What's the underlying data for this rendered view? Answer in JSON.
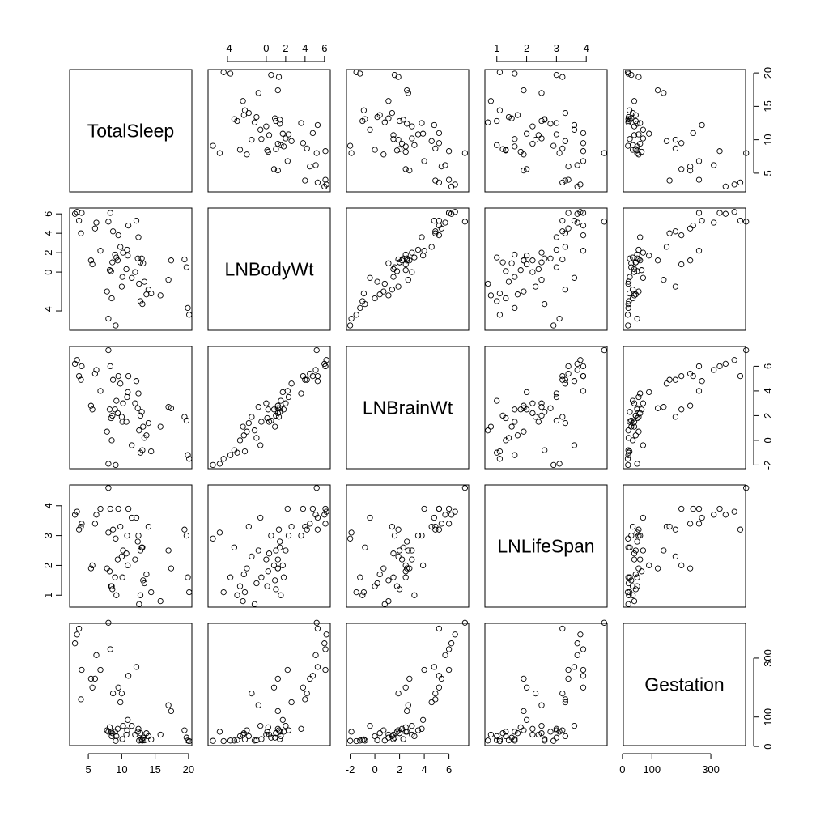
{
  "chart_data": {
    "type": "scatter",
    "variables": [
      "TotalSleep",
      "LNBodyWt",
      "LNBrainWt",
      "LNLifeSpan",
      "Gestation"
    ],
    "ranges": [
      [
        2.2,
        20.5
      ],
      [
        -6.0,
        6.6
      ],
      [
        -2.3,
        7.6
      ],
      [
        0.6,
        4.7
      ],
      [
        3,
        418
      ]
    ],
    "ticks": [
      [
        5,
        10,
        15,
        20
      ],
      [
        -4,
        0,
        2,
        4,
        6
      ],
      [
        -2,
        0,
        2,
        4,
        6
      ],
      [
        1,
        2,
        3,
        4
      ],
      [
        0,
        100,
        300
      ]
    ],
    "tick_labels": [
      [
        "5",
        "10",
        "15",
        "20"
      ],
      [
        "-4",
        "0",
        "2",
        "4",
        "6"
      ],
      [
        "-2",
        "0",
        "2",
        "4",
        "6"
      ],
      [
        "1",
        "2",
        "3",
        "4"
      ],
      [
        "0",
        "100",
        "300"
      ]
    ],
    "grid": false,
    "points": [
      {
        "TotalSleep": 3.3,
        "LNBodyWt": 6.2,
        "LNBrainWt": 6.5,
        "LNLifeSpan": 3.8,
        "Gestation": 380
      },
      {
        "TotalSleep": 3.0,
        "LNBodyWt": 6.0,
        "LNBrainWt": 6.2,
        "LNLifeSpan": 3.7,
        "Gestation": 350
      },
      {
        "TotalSleep": 4.0,
        "LNBodyWt": 6.1,
        "LNBrainWt": 6.0,
        "LNLifeSpan": 3.4,
        "Gestation": 260
      },
      {
        "TotalSleep": 3.6,
        "LNBodyWt": 5.3,
        "LNBrainWt": 5.2,
        "LNLifeSpan": 3.2,
        "Gestation": 400
      },
      {
        "TotalSleep": 3.9,
        "LNBodyWt": 4.0,
        "LNBrainWt": 4.9,
        "LNLifeSpan": 3.3,
        "Gestation": 160
      },
      {
        "TotalSleep": 6.2,
        "LNBodyWt": 5.1,
        "LNBrainWt": 5.7,
        "LNLifeSpan": 3.7,
        "Gestation": 310
      },
      {
        "TotalSleep": 6.0,
        "LNBodyWt": 4.5,
        "LNBrainWt": 5.4,
        "LNLifeSpan": 3.4,
        "Gestation": 230
      },
      {
        "TotalSleep": 8.0,
        "LNBodyWt": 5.2,
        "LNBrainWt": 7.3,
        "LNLifeSpan": 4.6,
        "Gestation": 420
      },
      {
        "TotalSleep": 8.3,
        "LNBodyWt": 6.1,
        "LNBrainWt": 6.0,
        "LNLifeSpan": 3.9,
        "Gestation": 330
      },
      {
        "TotalSleep": 8.7,
        "LNBodyWt": 4.2,
        "LNBrainWt": 4.9,
        "LNLifeSpan": 3.2,
        "Gestation": 180
      },
      {
        "TotalSleep": 9.5,
        "LNBodyWt": 3.8,
        "LNBrainWt": 5.2,
        "LNLifeSpan": 3.9,
        "Gestation": 200
      },
      {
        "TotalSleep": 11.0,
        "LNBodyWt": 4.8,
        "LNBrainWt": 5.2,
        "LNLifeSpan": 3.9,
        "Gestation": 240
      },
      {
        "TotalSleep": 12.2,
        "LNBodyWt": 5.3,
        "LNBrainWt": 4.8,
        "LNLifeSpan": 3.6,
        "Gestation": 270
      },
      {
        "TotalSleep": 9.8,
        "LNBodyWt": 2.6,
        "LNBrainWt": 4.6,
        "LNLifeSpan": 3.3,
        "Gestation": 150
      },
      {
        "TotalSleep": 10.8,
        "LNBodyWt": 2.3,
        "LNBrainWt": 3.5,
        "LNLifeSpan": 3.0,
        "Gestation": 55
      },
      {
        "TotalSleep": 12.5,
        "LNBodyWt": 3.6,
        "LNBrainWt": 3.8,
        "LNLifeSpan": 3.0,
        "Gestation": 60
      },
      {
        "TotalSleep": 5.4,
        "LNBodyWt": 1.2,
        "LNBrainWt": 2.8,
        "LNLifeSpan": 1.9,
        "Gestation": 230
      },
      {
        "TotalSleep": 5.6,
        "LNBodyWt": 0.8,
        "LNBrainWt": 2.5,
        "LNLifeSpan": 2.0,
        "Gestation": 200
      },
      {
        "TotalSleep": 8.2,
        "LNBodyWt": 0.2,
        "LNBrainWt": 2.5,
        "LNLifeSpan": 1.8,
        "Gestation": 65
      },
      {
        "TotalSleep": 8.4,
        "LNBodyWt": 0.1,
        "LNBrainWt": 1.8,
        "LNLifeSpan": 1.3,
        "Gestation": 50
      },
      {
        "TotalSleep": 8.6,
        "LNBodyWt": 1.0,
        "LNBrainWt": 2.0,
        "LNLifeSpan": 1.2,
        "Gestation": 45
      },
      {
        "TotalSleep": 9.2,
        "LNBodyWt": 1.5,
        "LNBrainWt": 3.2,
        "LNLifeSpan": 1.0,
        "Gestation": 35
      },
      {
        "TotalSleep": 9.4,
        "LNBodyWt": 1.2,
        "LNBrainWt": 2.2,
        "LNLifeSpan": 2.2,
        "Gestation": 60
      },
      {
        "TotalSleep": 10.2,
        "LNBodyWt": 2.0,
        "LNBrainWt": 3.0,
        "LNLifeSpan": 2.5,
        "Gestation": 70
      },
      {
        "TotalSleep": 10.7,
        "LNBodyWt": 0.3,
        "LNBrainWt": 1.5,
        "LNLifeSpan": 2.4,
        "Gestation": 40
      },
      {
        "TotalSleep": 10.9,
        "LNBodyWt": 1.7,
        "LNBrainWt": 3.9,
        "LNLifeSpan": 2.0,
        "Gestation": 90
      },
      {
        "TotalSleep": 12.4,
        "LNBodyWt": 1.4,
        "LNBrainWt": 2.6,
        "LNLifeSpan": 2.8,
        "Gestation": 50
      },
      {
        "TotalSleep": 12.8,
        "LNBodyWt": 1.0,
        "LNBrainWt": 2.0,
        "LNLifeSpan": 2.5,
        "Gestation": 45
      },
      {
        "TotalSleep": 13.2,
        "LNBodyWt": 0.9,
        "LNBrainWt": 1.1,
        "LNLifeSpan": 1.5,
        "Gestation": 30
      },
      {
        "TotalSleep": 13.0,
        "LNBodyWt": 1.4,
        "LNBrainWt": 2.3,
        "LNLifeSpan": 2.6,
        "Gestation": 25
      },
      {
        "TotalSleep": 12.0,
        "LNBodyWt": 0.0,
        "LNBrainWt": 3.0,
        "LNLifeSpan": 2.2,
        "Gestation": 40
      },
      {
        "TotalSleep": 12.6,
        "LNBodyWt": -1.2,
        "LNBrainWt": 0.8,
        "LNLifeSpan": 0.7,
        "Gestation": 20
      },
      {
        "TotalSleep": 10.1,
        "LNBodyWt": -0.5,
        "LNBrainWt": 1.5,
        "LNLifeSpan": 1.6,
        "Gestation": 25
      },
      {
        "TotalSleep": 13.4,
        "LNBodyWt": -1.0,
        "LNBrainWt": 0.2,
        "LNLifeSpan": 1.4,
        "Gestation": 21
      },
      {
        "TotalSleep": 14.0,
        "LNBodyWt": -1.8,
        "LNBrainWt": 1.4,
        "LNLifeSpan": 3.3,
        "Gestation": 35
      },
      {
        "TotalSleep": 14.4,
        "LNBodyWt": -2.2,
        "LNBrainWt": -0.9,
        "LNLifeSpan": 1.1,
        "Gestation": 24
      },
      {
        "TotalSleep": 11.5,
        "LNBodyWt": -0.6,
        "LNBrainWt": -0.4,
        "LNLifeSpan": 3.6,
        "Gestation": 70
      },
      {
        "TotalSleep": 9.0,
        "LNBodyWt": 1.8,
        "LNBrainWt": 2.5,
        "LNLifeSpan": 1.6,
        "Gestation": 50
      },
      {
        "TotalSleep": 7.8,
        "LNBodyWt": -2.0,
        "LNBrainWt": 0.7,
        "LNLifeSpan": 1.9,
        "Gestation": 55
      },
      {
        "TotalSleep": 8.5,
        "LNBodyWt": -2.7,
        "LNBrainWt": 0.0,
        "LNLifeSpan": 1.3,
        "Gestation": 35
      },
      {
        "TotalSleep": 13.7,
        "LNBodyWt": -2.3,
        "LNBrainWt": 0.4,
        "LNLifeSpan": 1.7,
        "Gestation": 45
      },
      {
        "TotalSleep": 15.8,
        "LNBodyWt": -2.4,
        "LNBrainWt": 1.1,
        "LNLifeSpan": 0.8,
        "Gestation": 40
      },
      {
        "TotalSleep": 17.0,
        "LNBodyWt": -0.8,
        "LNBrainWt": 2.7,
        "LNLifeSpan": 2.5,
        "Gestation": 140
      },
      {
        "TotalSleep": 17.4,
        "LNBodyWt": 1.2,
        "LNBrainWt": 2.6,
        "LNLifeSpan": 1.9,
        "Gestation": 120
      },
      {
        "TotalSleep": 19.4,
        "LNBodyWt": 1.3,
        "LNBrainWt": 1.9,
        "LNLifeSpan": 3.2,
        "Gestation": 55
      },
      {
        "TotalSleep": 19.7,
        "LNBodyWt": 0.5,
        "LNBrainWt": 1.6,
        "LNLifeSpan": 3.0,
        "Gestation": 30
      },
      {
        "TotalSleep": 19.9,
        "LNBodyWt": -3.7,
        "LNBrainWt": -1.2,
        "LNLifeSpan": 1.6,
        "Gestation": 20
      },
      {
        "TotalSleep": 20.1,
        "LNBodyWt": -4.4,
        "LNBrainWt": -1.5,
        "LNLifeSpan": 1.1,
        "Gestation": 18
      },
      {
        "TotalSleep": 12.8,
        "LNBodyWt": -3.0,
        "LNBrainWt": -1.0,
        "LNLifeSpan": 1.0,
        "Gestation": 22
      },
      {
        "TotalSleep": 9.1,
        "LNBodyWt": -5.5,
        "LNBrainWt": -2.0,
        "LNLifeSpan": 2.9,
        "Gestation": 19
      },
      {
        "TotalSleep": 8.0,
        "LNBodyWt": -4.8,
        "LNBrainWt": -1.9,
        "LNLifeSpan": 3.1,
        "Gestation": 50
      },
      {
        "TotalSleep": 13.1,
        "LNBodyWt": -3.3,
        "LNBrainWt": -0.8,
        "LNLifeSpan": 2.6,
        "Gestation": 20
      },
      {
        "TotalSleep": 10.0,
        "LNBodyWt": -1.5,
        "LNBrainWt": 1.9,
        "LNLifeSpan": 2.3,
        "Gestation": 180
      },
      {
        "TotalSleep": 6.8,
        "LNBodyWt": 2.2,
        "LNBrainWt": 4.0,
        "LNLifeSpan": 3.9,
        "Gestation": 260
      }
    ]
  }
}
